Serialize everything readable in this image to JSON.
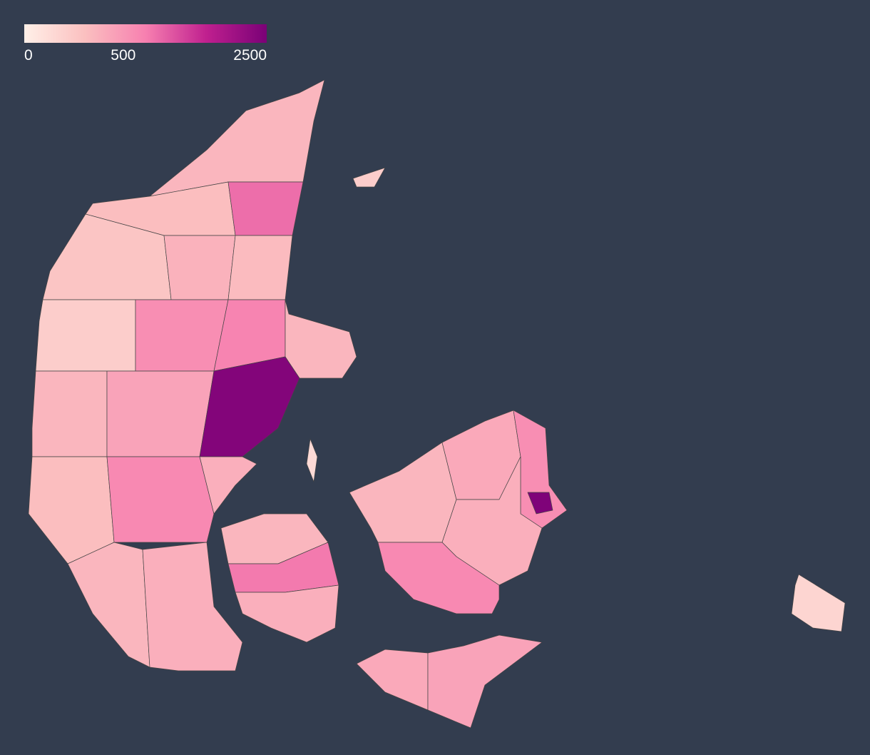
{
  "legend": {
    "ticks": [
      0,
      500,
      2500
    ],
    "lim": [
      0,
      3000
    ],
    "scale": "sqrt",
    "colors": [
      "#fff0e8",
      "#fbc0c0",
      "#f780b0",
      "#c0208f",
      "#7a0177"
    ]
  },
  "regions": [
    {
      "value": 250
    },
    {
      "value": 200
    },
    {
      "value": 900
    },
    {
      "value": 150
    },
    {
      "value": 280
    },
    {
      "value": 220
    },
    {
      "value": 100
    },
    {
      "value": 600
    },
    {
      "value": 700
    },
    {
      "value": 250
    },
    {
      "value": 250
    },
    {
      "value": 400
    },
    {
      "value": 2800
    },
    {
      "value": 200
    },
    {
      "value": 650
    },
    {
      "value": 300
    },
    {
      "value": 250
    },
    {
      "value": 300
    },
    {
      "value": 250
    },
    {
      "value": 800
    },
    {
      "value": 300
    },
    {
      "value": 250
    },
    {
      "value": 350
    },
    {
      "value": 600
    },
    {
      "value": 2900
    },
    {
      "value": 300
    },
    {
      "value": 650
    },
    {
      "value": 350
    },
    {
      "value": 400
    },
    {
      "value": 60
    },
    {
      "value": 100
    },
    {
      "value": 40
    }
  ]
}
